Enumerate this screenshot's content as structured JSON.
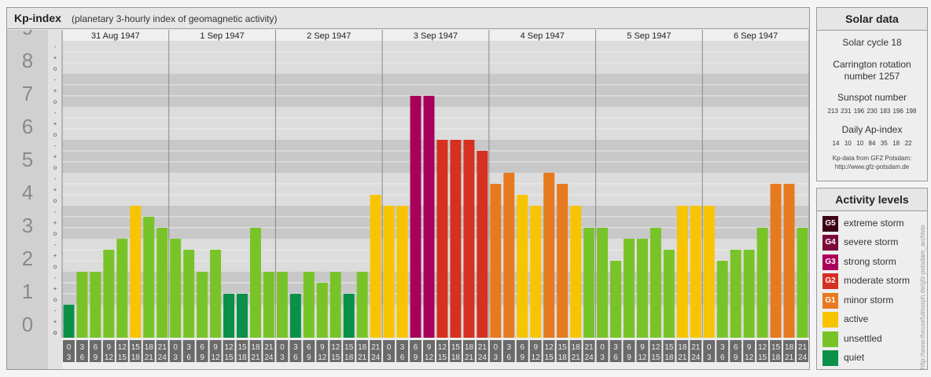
{
  "header": {
    "title": "Kp-index",
    "subtitle": "(planetary 3-hourly index of geomagnetic activity)"
  },
  "chart_data": {
    "type": "bar",
    "title": "Kp-index",
    "subtitle": "(planetary 3-hourly index of geomagnetic activity)",
    "ylim": [
      0,
      9
    ],
    "y_ticks": [
      "0",
      "1",
      "2",
      "3",
      "4",
      "5",
      "6",
      "7",
      "8",
      "9"
    ],
    "y_minor_ticks": [
      "o",
      "+",
      "-"
    ],
    "days": [
      "31 Aug 1947",
      "1 Sep 1947",
      "2 Sep 1947",
      "3 Sep 1947",
      "4 Sep 1947",
      "5 Sep 1947",
      "6 Sep 1947"
    ],
    "interval_labels": [
      [
        "0",
        "3"
      ],
      [
        "3",
        "6"
      ],
      [
        "6",
        "9"
      ],
      [
        "9",
        "12"
      ],
      [
        "12",
        "15"
      ],
      [
        "15",
        "18"
      ],
      [
        "18",
        "21"
      ],
      [
        "21",
        "24"
      ]
    ],
    "values": [
      [
        1.0,
        2.0,
        2.0,
        2.667,
        3.0,
        4.0,
        3.667,
        3.333
      ],
      [
        3.0,
        2.667,
        2.0,
        2.667,
        1.333,
        1.333,
        3.333,
        2.0
      ],
      [
        2.0,
        1.333,
        2.0,
        1.667,
        2.0,
        1.333,
        2.0,
        4.333
      ],
      [
        4.0,
        4.0,
        7.333,
        7.333,
        6.0,
        6.0,
        6.0,
        5.667
      ],
      [
        4.667,
        5.0,
        4.333,
        4.0,
        5.0,
        4.667,
        4.0,
        3.333
      ],
      [
        3.333,
        2.333,
        3.0,
        3.0,
        3.333,
        2.667,
        4.0,
        4.0
      ],
      [
        4.0,
        2.333,
        2.667,
        2.667,
        3.333,
        4.667,
        4.667,
        3.333
      ]
    ],
    "grid": true
  },
  "solar": {
    "header": "Solar data",
    "cycle": "Solar cycle 18",
    "rotation_line1": "Carrington rotation",
    "rotation_line2": "number 1257",
    "sunspot_label": "Sunspot number",
    "sunspot_numbers": "213 231 196 230 183 196 198",
    "ap_label": "Daily Ap-index",
    "ap_values": "14  10  10  84  35  18  22",
    "source_line1": "Kp-data from GFZ Potsdam:",
    "source_line2": "http://www.gfz-potsdam.de"
  },
  "activity": {
    "header": "Activity levels",
    "levels": [
      {
        "badge": "G5",
        "label": "extreme storm",
        "color": "#3c0018"
      },
      {
        "badge": "G4",
        "label": "severe storm",
        "color": "#7a0a3a"
      },
      {
        "badge": "G3",
        "label": "strong storm",
        "color": "#a8005a"
      },
      {
        "badge": "G2",
        "label": "moderate storm",
        "color": "#d63020"
      },
      {
        "badge": "G1",
        "label": "minor storm",
        "color": "#e77a1f"
      },
      {
        "badge": "",
        "label": "active",
        "color": "#f8c400"
      },
      {
        "badge": "",
        "label": "unsettled",
        "color": "#78c428"
      },
      {
        "badge": "",
        "label": "quiet",
        "color": "#0a9048"
      }
    ]
  },
  "credit": "http://www.theusefulmorph.de/gfz-potsdam_archivio"
}
